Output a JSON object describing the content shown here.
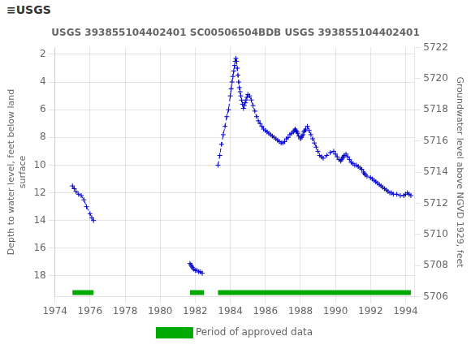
{
  "chart_data": {
    "type": "line",
    "title": "USGS 393855104402401 SC00506504BDB USGS 393855104402401",
    "annotations": [
      "≡USGS"
    ],
    "ylabel": "Depth to water level, feet below land\nsurface",
    "y2label": "Groundwater level above NGVD 1929, feet",
    "xlim": [
      1974,
      1994.5
    ],
    "xticks": [
      1974,
      1976,
      1978,
      1980,
      1982,
      1984,
      1986,
      1988,
      1990,
      1992,
      1994
    ],
    "ylim": [
      19.5,
      1.5
    ],
    "yticks": [
      2,
      4,
      6,
      8,
      10,
      12,
      14,
      16,
      18
    ],
    "y2lim": [
      5706,
      5722
    ],
    "y2ticks": [
      5706,
      5708,
      5710,
      5712,
      5714,
      5716,
      5718,
      5720,
      5722
    ],
    "grid": true,
    "legend": "bottom",
    "series": [
      {
        "type": "line",
        "color": "#0000cc",
        "line_style": "dashed",
        "marker": "+",
        "x": [
          1975.0,
          1975.1,
          1975.2,
          1975.35,
          1975.5,
          1975.65,
          1975.8,
          1976.0,
          1976.1,
          1976.2
        ],
        "values": [
          11.5,
          11.7,
          11.9,
          12.1,
          12.2,
          12.5,
          13.0,
          13.5,
          13.8,
          14.0
        ]
      },
      {
        "type": "line",
        "color": "#0000cc",
        "line_style": "dashed",
        "marker": "+",
        "x": [
          1981.7,
          1981.75,
          1981.8,
          1981.85,
          1981.9,
          1982.0,
          1982.1,
          1982.2,
          1982.3,
          1982.4
        ],
        "values": [
          17.1,
          17.2,
          17.3,
          17.4,
          17.5,
          17.6,
          17.6,
          17.7,
          17.7,
          17.8
        ]
      },
      {
        "type": "line",
        "color": "#0000cc",
        "line_style": "dashed",
        "marker": "+",
        "x": [
          1983.3,
          1983.4,
          1983.5,
          1983.6,
          1983.7,
          1983.8,
          1983.9,
          1984.0,
          1984.05,
          1984.1,
          1984.15,
          1984.2,
          1984.25,
          1984.28,
          1984.32,
          1984.36,
          1984.4,
          1984.44,
          1984.48,
          1984.52,
          1984.56,
          1984.6,
          1984.65,
          1984.7,
          1984.75,
          1984.8,
          1984.85,
          1984.9,
          1984.95,
          1985.0,
          1985.1,
          1985.2,
          1985.3,
          1985.4,
          1985.5,
          1985.6,
          1985.7,
          1985.8,
          1985.9,
          1986.0,
          1986.1,
          1986.2,
          1986.3,
          1986.4,
          1986.5,
          1986.6,
          1986.7,
          1986.8,
          1986.9,
          1987.0,
          1987.1,
          1987.2,
          1987.3,
          1987.4,
          1987.5,
          1987.6,
          1987.65,
          1987.7,
          1987.75,
          1987.8,
          1987.85,
          1987.9,
          1988.0,
          1988.05,
          1988.1,
          1988.15,
          1988.2,
          1988.25,
          1988.3,
          1988.4,
          1988.5,
          1988.6,
          1988.7,
          1988.8,
          1988.9,
          1989.0,
          1989.1,
          1989.2,
          1989.3,
          1989.5,
          1989.7,
          1989.9,
          1990.0,
          1990.1,
          1990.2,
          1990.3,
          1990.35,
          1990.4,
          1990.45,
          1990.5,
          1990.6,
          1990.7,
          1990.8,
          1990.9,
          1991.0,
          1991.1,
          1991.2,
          1991.3,
          1991.4,
          1991.5,
          1991.6,
          1991.65,
          1991.7,
          1991.8,
          1992.0,
          1992.1,
          1992.2,
          1992.3,
          1992.4,
          1992.5,
          1992.6,
          1992.7,
          1992.8,
          1992.9,
          1993.0,
          1993.1,
          1993.2,
          1993.3,
          1993.5,
          1993.7,
          1993.9,
          1994.0,
          1994.1,
          1994.2,
          1994.3
        ],
        "values": [
          10.0,
          9.3,
          8.5,
          7.8,
          7.2,
          6.5,
          6.0,
          5.0,
          4.5,
          4.0,
          3.6,
          3.2,
          2.8,
          2.5,
          2.3,
          2.5,
          3.0,
          3.5,
          4.0,
          4.4,
          4.7,
          5.0,
          5.3,
          5.6,
          5.9,
          5.7,
          5.5,
          5.3,
          5.1,
          4.9,
          5.0,
          5.3,
          5.7,
          6.1,
          6.5,
          6.8,
          7.0,
          7.2,
          7.4,
          7.5,
          7.6,
          7.7,
          7.8,
          7.9,
          8.0,
          8.1,
          8.2,
          8.3,
          8.4,
          8.4,
          8.3,
          8.1,
          8.0,
          7.8,
          7.7,
          7.6,
          7.5,
          7.4,
          7.5,
          7.6,
          7.7,
          7.9,
          8.1,
          8.0,
          7.9,
          7.8,
          7.6,
          7.5,
          7.4,
          7.2,
          7.5,
          7.8,
          8.1,
          8.4,
          8.7,
          9.0,
          9.3,
          9.4,
          9.5,
          9.3,
          9.1,
          9.0,
          9.2,
          9.4,
          9.6,
          9.7,
          9.6,
          9.5,
          9.4,
          9.3,
          9.2,
          9.4,
          9.6,
          9.8,
          9.9,
          10.0,
          10.0,
          10.1,
          10.2,
          10.3,
          10.5,
          10.6,
          10.7,
          10.8,
          10.9,
          11.0,
          11.1,
          11.2,
          11.3,
          11.4,
          11.5,
          11.6,
          11.7,
          11.8,
          11.9,
          12.0,
          12.0,
          12.1,
          12.1,
          12.2,
          12.2,
          12.1,
          12.0,
          12.1,
          12.2
        ]
      },
      {
        "name": "Period of approved data",
        "type": "bar",
        "color": "#00aa00",
        "ranges": [
          [
            1975.0,
            1976.2
          ],
          [
            1981.7,
            1982.5
          ],
          [
            1983.3,
            1994.3
          ]
        ],
        "y": 19.2
      }
    ]
  }
}
